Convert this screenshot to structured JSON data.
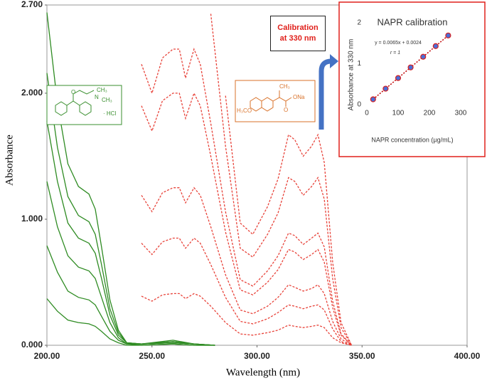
{
  "chart_data": [
    {
      "type": "line",
      "xlabel": "Wavelength (nm)",
      "ylabel": "Absorbance",
      "xlim": [
        200,
        400
      ],
      "xticks": [
        {
          "value": 200,
          "label": "200.00"
        },
        {
          "value": 250,
          "label": "250.00"
        },
        {
          "value": 300,
          "label": "300.00"
        },
        {
          "value": 350,
          "label": "350.00"
        },
        {
          "value": 400,
          "label": "400.00"
        }
      ],
      "ylim": [
        0,
        2.7
      ],
      "yticks": [
        {
          "value": 0,
          "label": "0.000"
        },
        {
          "value": 1,
          "label": "1.000"
        },
        {
          "value": 2,
          "label": "2.000"
        },
        {
          "value": 2.7,
          "label": "2.700"
        }
      ],
      "series": [
        {
          "color": "#2e8b22",
          "style": "solid",
          "x": [
            200,
            205,
            210,
            215,
            220,
            223,
            226,
            230,
            234,
            238,
            245,
            260,
            270,
            280
          ],
          "values": [
            0.37,
            0.27,
            0.2,
            0.18,
            0.17,
            0.15,
            0.11,
            0.05,
            0.02,
            0,
            0,
            0.01,
            0,
            0
          ]
        },
        {
          "color": "#2e8b22",
          "style": "solid",
          "x": [
            200,
            205,
            210,
            215,
            220,
            223,
            226,
            230,
            234,
            238,
            245,
            260,
            270,
            280
          ],
          "values": [
            0.79,
            0.58,
            0.43,
            0.38,
            0.36,
            0.32,
            0.23,
            0.11,
            0.04,
            0.01,
            0,
            0.01,
            0,
            0
          ]
        },
        {
          "color": "#2e8b22",
          "style": "solid",
          "x": [
            200,
            205,
            210,
            215,
            220,
            223,
            226,
            230,
            234,
            238,
            245,
            260,
            270,
            280
          ],
          "values": [
            1.3,
            0.94,
            0.71,
            0.62,
            0.59,
            0.53,
            0.38,
            0.18,
            0.06,
            0.01,
            0.01,
            0.02,
            0.01,
            0
          ]
        },
        {
          "color": "#2e8b22",
          "style": "solid",
          "x": [
            200,
            205,
            210,
            215,
            220,
            223,
            226,
            230,
            234,
            238,
            245,
            260,
            270,
            280
          ],
          "values": [
            1.78,
            1.3,
            0.97,
            0.85,
            0.81,
            0.73,
            0.53,
            0.24,
            0.08,
            0.02,
            0.01,
            0.02,
            0.01,
            0
          ]
        },
        {
          "color": "#2e8b22",
          "style": "solid",
          "x": [
            200,
            205,
            210,
            215,
            220,
            223,
            226,
            230,
            234,
            238,
            245,
            260,
            270,
            280
          ],
          "values": [
            2.16,
            1.57,
            1.18,
            1.03,
            0.98,
            0.88,
            0.64,
            0.29,
            0.1,
            0.02,
            0.01,
            0.03,
            0.01,
            0
          ]
        },
        {
          "color": "#2e8b22",
          "style": "solid",
          "x": [
            200,
            205,
            210,
            215,
            220,
            223,
            226,
            230,
            234,
            238,
            245,
            260,
            270,
            280
          ],
          "values": [
            2.64,
            1.92,
            1.44,
            1.26,
            1.2,
            1.08,
            0.78,
            0.36,
            0.12,
            0.02,
            0.01,
            0.04,
            0.01,
            0
          ]
        },
        {
          "color": "#e8433a",
          "style": "dashed",
          "x": [
            245,
            250,
            255,
            260,
            263,
            266,
            270,
            273,
            278,
            285,
            292,
            298,
            305,
            310,
            315,
            318,
            322,
            326,
            329,
            332,
            336,
            340,
            345
          ],
          "values": [
            0.39,
            0.35,
            0.4,
            0.41,
            0.41,
            0.37,
            0.41,
            0.39,
            0.31,
            0.18,
            0.09,
            0.08,
            0.1,
            0.12,
            0.16,
            0.15,
            0.14,
            0.15,
            0.16,
            0.14,
            0.06,
            0.02,
            0
          ]
        },
        {
          "color": "#e8433a",
          "style": "dashed",
          "x": [
            245,
            250,
            255,
            260,
            263,
            266,
            270,
            273,
            278,
            285,
            292,
            298,
            305,
            310,
            315,
            318,
            322,
            326,
            329,
            332,
            336,
            340,
            345
          ],
          "values": [
            0.81,
            0.72,
            0.82,
            0.85,
            0.85,
            0.77,
            0.85,
            0.81,
            0.64,
            0.38,
            0.19,
            0.17,
            0.21,
            0.26,
            0.32,
            0.31,
            0.29,
            0.31,
            0.32,
            0.28,
            0.13,
            0.03,
            0
          ]
        },
        {
          "color": "#e8433a",
          "style": "dashed",
          "x": [
            245,
            250,
            255,
            260,
            263,
            266,
            270,
            273,
            278,
            285,
            292,
            298,
            305,
            310,
            315,
            318,
            322,
            326,
            329,
            332,
            336,
            340,
            345
          ],
          "values": [
            1.19,
            1.06,
            1.21,
            1.25,
            1.25,
            1.13,
            1.25,
            1.19,
            0.94,
            0.56,
            0.28,
            0.25,
            0.31,
            0.38,
            0.48,
            0.46,
            0.43,
            0.45,
            0.48,
            0.41,
            0.19,
            0.05,
            0
          ]
        },
        {
          "color": "#e8433a",
          "style": "dashed",
          "x": [
            245,
            250,
            255,
            260,
            263,
            266,
            270,
            273,
            278,
            285,
            292,
            298,
            305,
            310,
            315,
            318,
            322,
            326,
            329,
            332,
            336,
            340,
            345
          ],
          "values": [
            1.9,
            1.7,
            1.94,
            2.0,
            2.0,
            1.8,
            2.0,
            1.9,
            1.5,
            0.9,
            0.44,
            0.4,
            0.5,
            0.6,
            0.76,
            0.74,
            0.68,
            0.72,
            0.76,
            0.66,
            0.3,
            0.08,
            0
          ]
        },
        {
          "color": "#e8433a",
          "style": "dashed",
          "x": [
            245,
            250,
            255,
            260,
            263,
            266,
            270,
            273,
            278,
            285,
            292,
            298,
            305,
            310,
            315,
            318,
            322,
            326,
            329,
            332,
            336,
            340,
            345
          ],
          "values": [
            2.23,
            2.0,
            2.28,
            2.35,
            2.35,
            2.12,
            2.35,
            2.23,
            1.76,
            1.06,
            0.52,
            0.47,
            0.59,
            0.71,
            0.89,
            0.87,
            0.8,
            0.85,
            0.89,
            0.78,
            0.35,
            0.09,
            0
          ]
        },
        {
          "color": "#e8433a",
          "style": "dashed",
          "x": [
            278,
            285,
            292,
            298,
            305,
            310,
            315,
            318,
            322,
            326,
            329,
            332,
            336,
            340,
            345
          ],
          "values": [
            2.63,
            1.58,
            0.77,
            0.7,
            0.88,
            1.05,
            1.33,
            1.3,
            1.19,
            1.26,
            1.33,
            1.16,
            0.53,
            0.14,
            0
          ]
        },
        {
          "color": "#e8433a",
          "style": "dashed",
          "x": [
            285,
            292,
            298,
            305,
            310,
            315,
            318,
            322,
            326,
            329,
            332,
            336,
            340,
            345
          ],
          "values": [
            1.98,
            0.97,
            0.88,
            1.1,
            1.32,
            1.67,
            1.63,
            1.5,
            1.58,
            1.67,
            1.45,
            0.66,
            0.18,
            0
          ]
        }
      ],
      "annotations": {
        "callout": "Calibration at 330 nm",
        "diphenhydramine": [
          "CH₃",
          "N",
          "CH₃",
          "O",
          "· HCl"
        ],
        "naproxen": [
          "CH₃",
          "ONa",
          "O",
          "H₃CO"
        ]
      }
    },
    {
      "type": "scatter",
      "title": "NAPR calibration",
      "xlabel": "NAPR concentration (µg/mL)",
      "ylabel": "Absorbance at 330 nm",
      "equation": "y = 0.0065x + 0.0024",
      "r": "r = 1",
      "xlim": [
        0,
        300
      ],
      "xticks": [
        0,
        100,
        200,
        300
      ],
      "ylim": [
        0,
        2
      ],
      "yticks": [
        0,
        1,
        2
      ],
      "x": [
        20,
        60,
        100,
        140,
        180,
        220,
        260
      ],
      "values": [
        0.13,
        0.39,
        0.65,
        0.91,
        1.17,
        1.43,
        1.69
      ],
      "color": "#4a6fd8",
      "edgecolor": "#d62020",
      "trendline_color": "#c00000"
    }
  ]
}
